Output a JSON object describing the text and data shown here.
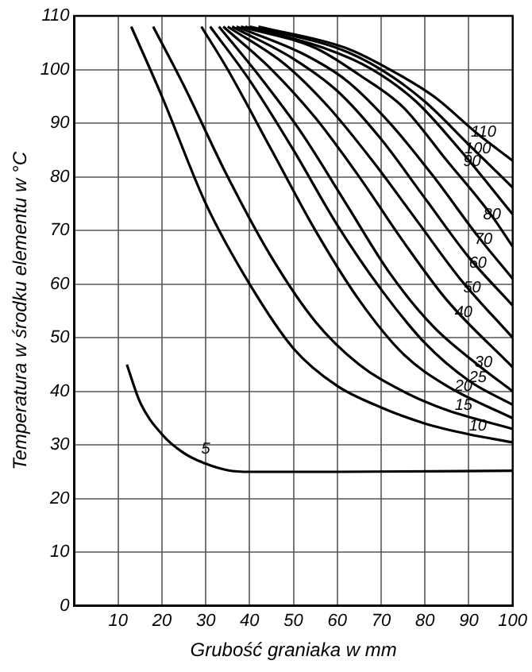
{
  "chart_data": {
    "type": "line",
    "xlabel": "Grubość graniaka w mm",
    "ylabel": "Temperatura w środku elementu w °C",
    "xlim": [
      0,
      100
    ],
    "xticks": [
      10,
      20,
      30,
      40,
      50,
      60,
      70,
      80,
      90,
      100
    ],
    "ylim": [
      0,
      110
    ],
    "yticks": [
      0,
      10,
      20,
      30,
      40,
      50,
      60,
      70,
      80,
      90,
      100,
      110
    ],
    "grid": true,
    "legend": false,
    "marker": "none",
    "line_style": "solid",
    "series": [
      {
        "name": "5",
        "color": "#000000",
        "x": [
          12,
          15,
          20,
          25,
          30,
          35,
          40,
          60,
          100
        ],
        "values": [
          45,
          38,
          32,
          28.5,
          26.5,
          25.3,
          25,
          25,
          25.2
        ]
      },
      {
        "name": "10",
        "color": "#000000",
        "x": [
          13,
          20,
          30,
          40,
          50,
          60,
          70,
          80,
          90,
          100
        ],
        "values": [
          108,
          95,
          75,
          60,
          48,
          41,
          37,
          34,
          32,
          30.5
        ]
      },
      {
        "name": "15",
        "color": "#000000",
        "x": [
          18,
          25,
          35,
          45,
          55,
          65,
          75,
          85,
          100
        ],
        "values": [
          108,
          97,
          80,
          65,
          53,
          45,
          40,
          36.5,
          33
        ]
      },
      {
        "name": "20",
        "color": "#000000",
        "x": [
          29,
          35,
          45,
          55,
          65,
          75,
          85,
          100
        ],
        "values": [
          108,
          100,
          85,
          70,
          57,
          47,
          41,
          35
        ]
      },
      {
        "name": "25",
        "color": "#000000",
        "x": [
          31,
          40,
          50,
          60,
          70,
          80,
          90,
          100
        ],
        "values": [
          108,
          98,
          85,
          71,
          59,
          49,
          42,
          37.5
        ]
      },
      {
        "name": "30",
        "color": "#000000",
        "x": [
          33,
          42,
          52,
          62,
          72,
          82,
          92,
          100
        ],
        "values": [
          108,
          99,
          88,
          75,
          62,
          52,
          45,
          40
        ]
      },
      {
        "name": "40",
        "color": "#000000",
        "x": [
          34,
          45,
          55,
          65,
          75,
          85,
          100
        ],
        "values": [
          108,
          100,
          91,
          80,
          68,
          57,
          44.5
        ]
      },
      {
        "name": "50",
        "color": "#000000",
        "x": [
          35,
          48,
          58,
          68,
          78,
          88,
          100
        ],
        "values": [
          108,
          101,
          93,
          83,
          72,
          61,
          50
        ]
      },
      {
        "name": "60",
        "color": "#000000",
        "x": [
          36,
          50,
          60,
          70,
          80,
          90,
          100
        ],
        "values": [
          108,
          102,
          96,
          87,
          76,
          65,
          56
        ]
      },
      {
        "name": "70",
        "color": "#000000",
        "x": [
          37,
          52,
          62,
          72,
          82,
          92,
          100
        ],
        "values": [
          108,
          103,
          98,
          90,
          80,
          69,
          61
        ]
      },
      {
        "name": "80",
        "color": "#000000",
        "x": [
          38,
          55,
          65,
          75,
          85,
          95,
          100
        ],
        "values": [
          108,
          104,
          99,
          93,
          83,
          73,
          67
        ]
      },
      {
        "name": "90",
        "color": "#000000",
        "x": [
          39,
          57,
          68,
          78,
          88,
          100
        ],
        "values": [
          108,
          104,
          100,
          94,
          85,
          73
        ]
      },
      {
        "name": "100",
        "color": "#000000",
        "x": [
          40,
          60,
          70,
          80,
          90,
          100
        ],
        "values": [
          108,
          104,
          100,
          94,
          86,
          78
        ]
      },
      {
        "name": "110",
        "color": "#000000",
        "x": [
          42,
          62,
          72,
          82,
          92,
          100
        ],
        "values": [
          108,
          104,
          100,
          95,
          88,
          83
        ]
      }
    ]
  }
}
